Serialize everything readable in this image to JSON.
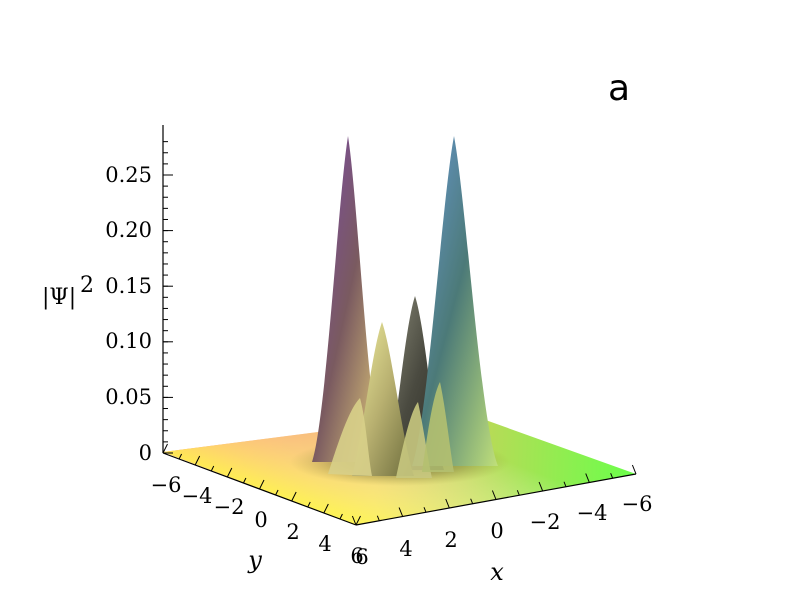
{
  "panel_label": "a",
  "chart_data": {
    "type": "surface3d",
    "zlabel": "|Ψ|",
    "zlabel_exponent": "2",
    "xlabel": "x",
    "ylabel": "y",
    "xlim": [
      -6,
      6
    ],
    "ylim": [
      -6,
      6
    ],
    "zlim": [
      0,
      0.28
    ],
    "x_ticks": [
      "6",
      "4",
      "2",
      "0",
      "−2",
      "−4",
      "−6"
    ],
    "y_ticks": [
      "−6",
      "−4",
      "−2",
      "0",
      "2",
      "4",
      "6"
    ],
    "z_ticks": [
      "0.25",
      "0.20",
      "0.15",
      "0.10",
      "0.05",
      "0"
    ],
    "peaks": [
      {
        "x": 0.0,
        "y": -2.5,
        "z": 0.28
      },
      {
        "x": -2.5,
        "y": 0.0,
        "z": 0.28
      },
      {
        "x": 1.4,
        "y": 1.4,
        "z": 0.11
      },
      {
        "x": -0.6,
        "y": 0.6,
        "z": 0.14
      }
    ],
    "colors": {
      "corner_far": "#ff5a5a",
      "corner_right": "#6aff4a",
      "corner_near": "#ffff55",
      "peak_left": "#7a4aa8",
      "peak_right": "#6a9ad8"
    }
  }
}
